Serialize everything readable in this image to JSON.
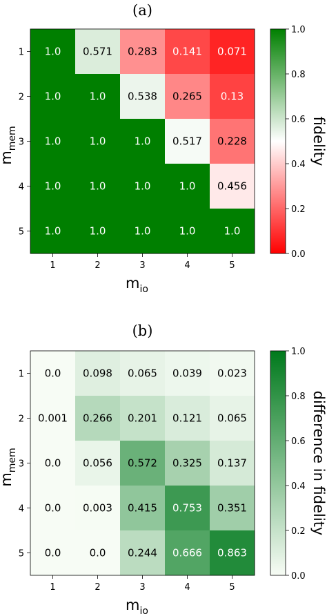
{
  "chart_data": [
    {
      "type": "heatmap",
      "panel_label": "(a)",
      "x_categories": [
        "1",
        "2",
        "3",
        "4",
        "5"
      ],
      "y_categories": [
        "1",
        "2",
        "3",
        "4",
        "5"
      ],
      "xlabel": "m",
      "xlabel_sub": "io",
      "ylabel": "m",
      "ylabel_sub": "mem",
      "colorbar_label": "fidelity",
      "colormap": "red-white-green",
      "colors": {
        "low": "#ff0000",
        "mid": "#ffffff",
        "high": "#007f00"
      },
      "vmin": 0.0,
      "vmax": 1.0,
      "colorbar_ticks": [
        "0.0",
        "0.2",
        "0.4",
        "0.6",
        "0.8",
        "1.0"
      ],
      "values": [
        [
          1.0,
          0.571,
          0.283,
          0.141,
          0.071
        ],
        [
          1.0,
          1.0,
          0.538,
          0.265,
          0.13
        ],
        [
          1.0,
          1.0,
          1.0,
          0.517,
          0.228
        ],
        [
          1.0,
          1.0,
          1.0,
          1.0,
          0.456
        ],
        [
          1.0,
          1.0,
          1.0,
          1.0,
          1.0
        ]
      ],
      "cell_labels": [
        [
          "1.0",
          "0.571",
          "0.283",
          "0.141",
          "0.071"
        ],
        [
          "1.0",
          "1.0",
          "0.538",
          "0.265",
          "0.13"
        ],
        [
          "1.0",
          "1.0",
          "1.0",
          "0.517",
          "0.228"
        ],
        [
          "1.0",
          "1.0",
          "1.0",
          "1.0",
          "0.456"
        ],
        [
          "1.0",
          "1.0",
          "1.0",
          "1.0",
          "1.0"
        ]
      ]
    },
    {
      "type": "heatmap",
      "panel_label": "(b)",
      "x_categories": [
        "1",
        "2",
        "3",
        "4",
        "5"
      ],
      "y_categories": [
        "1",
        "2",
        "3",
        "4",
        "5"
      ],
      "xlabel": "m",
      "xlabel_sub": "io",
      "ylabel": "m",
      "ylabel_sub": "mem",
      "colorbar_label": "difference in fidelity",
      "colormap": "white-green",
      "colors": {
        "low": "#f7fcf5",
        "high": "#00791c"
      },
      "vmin": 0.0,
      "vmax": 1.0,
      "colorbar_ticks": [
        "0.0",
        "0.2",
        "0.4",
        "0.6",
        "0.8",
        "1.0"
      ],
      "values": [
        [
          0.0,
          0.098,
          0.065,
          0.039,
          0.023
        ],
        [
          0.001,
          0.266,
          0.201,
          0.121,
          0.065
        ],
        [
          0.0,
          0.056,
          0.572,
          0.325,
          0.137
        ],
        [
          0.0,
          0.003,
          0.415,
          0.753,
          0.351
        ],
        [
          0.0,
          0.0,
          0.244,
          0.666,
          0.863
        ]
      ],
      "cell_labels": [
        [
          "0.0",
          "0.098",
          "0.065",
          "0.039",
          "0.023"
        ],
        [
          "0.001",
          "0.266",
          "0.201",
          "0.121",
          "0.065"
        ],
        [
          "0.0",
          "0.056",
          "0.572",
          "0.325",
          "0.137"
        ],
        [
          "0.0",
          "0.003",
          "0.415",
          "0.753",
          "0.351"
        ],
        [
          "0.0",
          "0.0",
          "0.244",
          "0.666",
          "0.863"
        ]
      ]
    }
  ]
}
